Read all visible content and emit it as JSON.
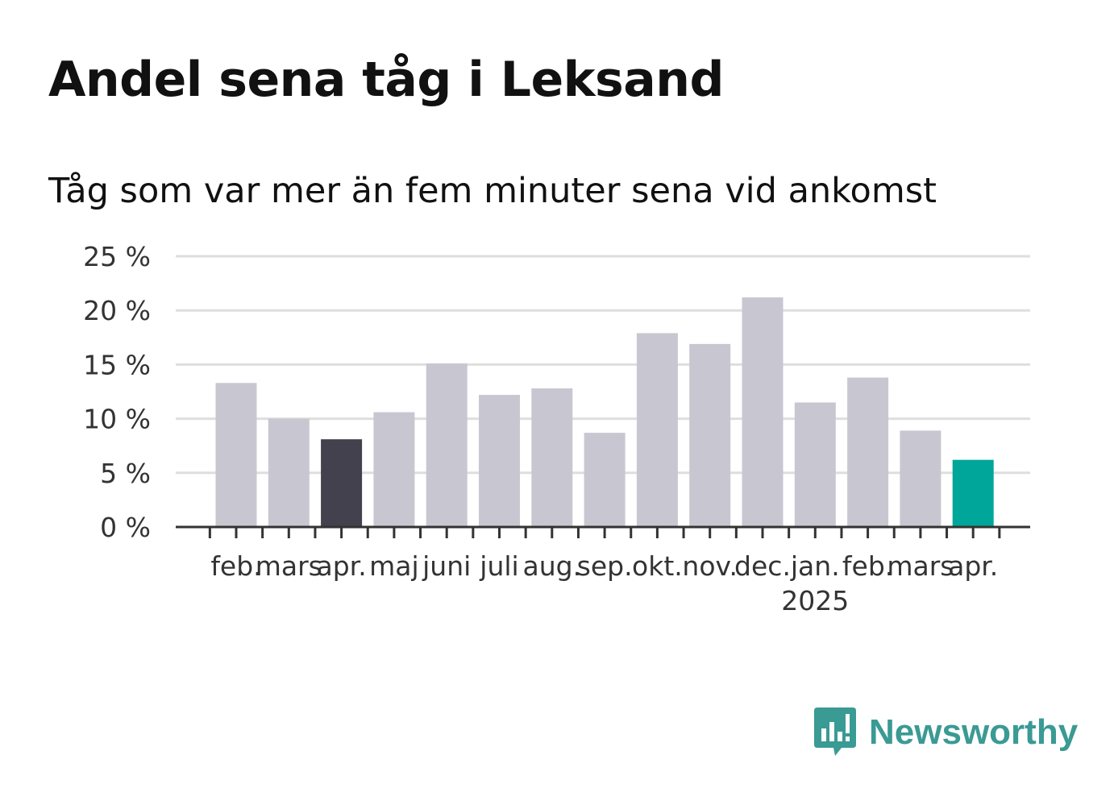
{
  "chart_data": {
    "type": "bar",
    "title": "Andel sena tåg i Leksand",
    "subtitle": "Tåg som var mer än fem minuter sena vid ankomst",
    "categories": [
      "feb.",
      "mars",
      "apr.",
      "maj",
      "juni",
      "juli",
      "aug.",
      "sep.",
      "okt.",
      "nov.",
      "dec.",
      "jan.",
      "feb.",
      "mars",
      "apr."
    ],
    "year_label": "2025",
    "year_label_at_index": 11,
    "values": [
      13.3,
      10.0,
      8.1,
      10.6,
      15.1,
      12.2,
      12.8,
      8.7,
      17.9,
      16.9,
      21.2,
      11.5,
      13.8,
      8.9,
      6.2
    ],
    "highlight": {
      "index": 2,
      "color": "#42414d"
    },
    "latest": {
      "index": 14,
      "color": "#00a69a"
    },
    "bar_color": "#c8c7d1",
    "ylim": [
      0,
      25
    ],
    "yticks": [
      0,
      5,
      10,
      15,
      20,
      25
    ],
    "ytick_suffix": " %",
    "grid": true,
    "xlabel": "",
    "ylabel": ""
  },
  "brand": {
    "name": "Newsworthy",
    "color": "#3a9a94",
    "icon": "newsworthy-bar-chart-icon"
  }
}
